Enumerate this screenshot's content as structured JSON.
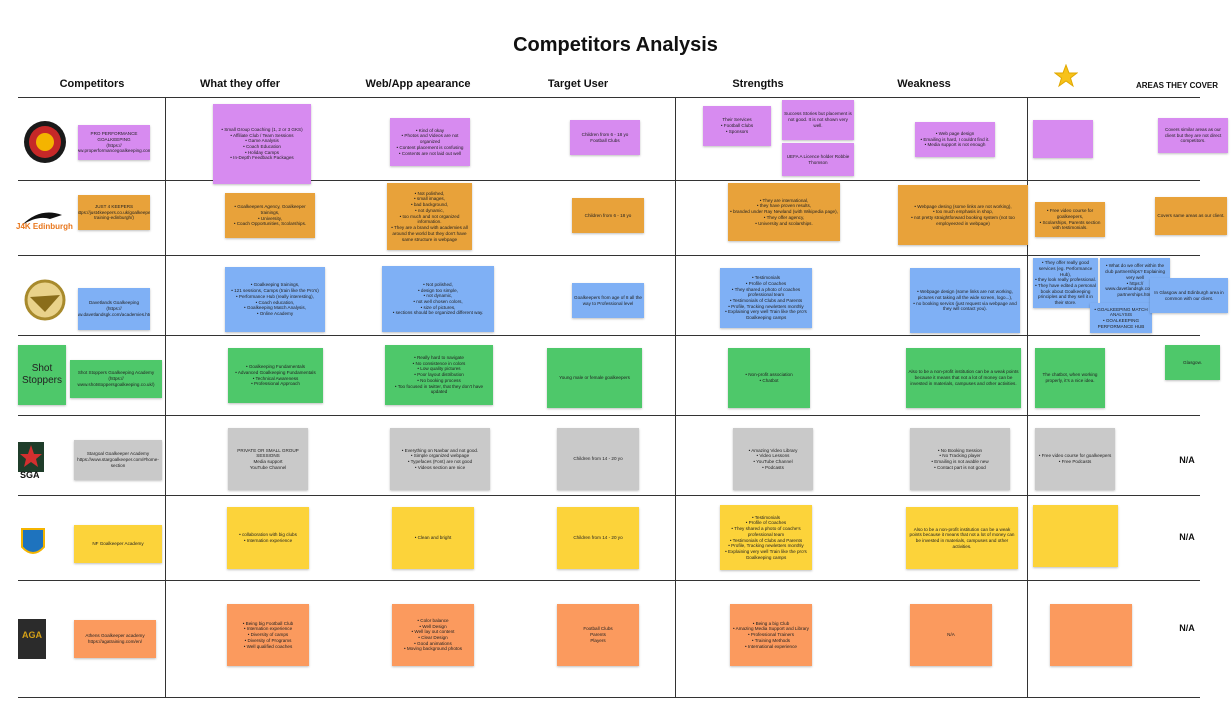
{
  "title": "Competitors Analysis",
  "headers": [
    "Competitors",
    "What they offer",
    "Web/App apearance",
    "Target User",
    "Strengths",
    "Weakness",
    "AREAS THEY COVER"
  ],
  "rows": [
    {
      "name": "PRO PERFORMANCE GOALKEEPING\n(https://\nwww.properformancegoalkeeping.com/)",
      "offer": [
        "• Small Group Coaching (1, 2 or 3 GKS)\n• Affiliate Club / Team Sessions\n• Game Analysis\n• Coach Education\n• Holiday Camps\n• In-Depth Feedback Packages"
      ],
      "web": [
        "• Kind of okay\n• Photos and Videos are not organized\n• Content placement is confusing\n• Contents are not laid out well"
      ],
      "target": [
        "Children from 6 - 18 yo\nFootball Clubs"
      ],
      "strengths": [
        "Their Services\n• Football Clubs\n• Sponsors",
        "Success Stories but placement is not good. It is not shown very well.",
        "UEFA A Licence holder Robbie Thomson"
      ],
      "weakness": [
        "• Web page design\n• Emailing is hard, I couldnt find it.\n• Media support is not enough"
      ],
      "star": [],
      "areas": [
        "Covers similar areas as our client but they are not direct competitors."
      ]
    },
    {
      "logo": "J4K Edinburgh",
      "name": "JUST 4 KEEPERS\n(https://just4keepers.co.uk/goalkeeper-training-edinburgh/)",
      "offer": [
        "• Goalkeepers Agency, Goalkeeper trainings,\n• University,\n• Coach Opportunities, Scolarships."
      ],
      "web": [
        "• Not polished,\n• small images,\n• bad background,\n• not dynamic,\n• too much and not organized information.\n• They are a brand with academies all around the world but they don't have same structure in webpage"
      ],
      "target": [
        "Children from 6 - 18 yo"
      ],
      "strengths": [
        "• They are international,\n• they have proven results,\n• branded under Ray Newland (with Wikipedia page),\n• They offer agency,\n• University and scolarships."
      ],
      "weakness": [
        "• Webpage desing (some links are not working),\n• too much emphasis in shop,\n• not pretty straightforward booking system (not too employeezed in webpage)"
      ],
      "star": [
        "• Free video course for goalkeepers,\n• Scolarships, Parents section with testimonials."
      ],
      "areas": [
        "Covers same areas as our client."
      ]
    },
    {
      "name": "Davetlands Goalkeeping\n(https://\nwww.davetlandsgk.com/academies.html)",
      "offer": [
        "• Goalkeeping trainings,\n• 121 sessions, Camps (train like the Pro's)\n• Performance Hub (really interesting),\n• Coach education,\n• Goalkeeping Match Analysis,\n• Online Academy"
      ],
      "web": [
        "• Not polished,\n• design too simple,\n• not dynamic,\n• not well chosen colors,\n• size of pictures,\n• sections should be organized different way."
      ],
      "target": [
        "Goalkeepers from age of 8 all the way to Professional level"
      ],
      "strengths": [
        "• Testimonials\n• Profile of Coaches\n• They shared a photo of coaches professional team\n• Testimonials of Clubs and Parents\n• Profile, Tracking newletters monthly\n• Explaining very well Train like the pro's Goalkeeping camps"
      ],
      "weakness": [
        "• Webpage design (some links are not working, pictures not taking all the wide screen, logo...),\n• no booking servics (just request via webpage and they will contact you)."
      ],
      "star": [
        "• They offer really good services (eg. Performance Hub),\n• they look really professional.\n• They have edited a personal book about Goalkeeping principles and they sell it in their store.",
        "• What do we offer within the club partnerships? Explaining very well\n• https://\nwww.davetlandsgk.com/club-partnerships.html",
        "• GOALKEEPING MATCH ANALYSIS\n• GOALKEEPING PERFORMANCE HUB"
      ],
      "areas": [
        "In Glasgow and Edinburgh area in common with our client."
      ]
    },
    {
      "logo": "Shot Stoppers",
      "name": "Shot Stoppers Goalkeeping Academy\n(https://\nwww.shotstoppersgoalkeeping.co.uk/)",
      "offer": [
        "• Goalkeeping Fundamentals\n• Advanced Goalkeeping Fundamentals\n• Technical Awareness\n• Professional Approach"
      ],
      "web": [
        "• Really hard to navigate\n• No consistence in colors\n• Low quality pictures\n• Poor layout distribution\n• No booking process\n• Too focused in twitter, that they don't have updated"
      ],
      "target": [
        "Young male or female goalkeepers"
      ],
      "strengths": [
        "• Non-profit association\n• Chatbot"
      ],
      "weakness": [
        "Also to be a non-profit institution can be a weak points because it means that not a lot of money can be invested in materials, campuses and other activities."
      ],
      "star": [
        "The chatbot, when working properly, it's a nice idea."
      ],
      "areas": [
        "Glasgow."
      ]
    },
    {
      "logo": "SGA",
      "name": "Stargoal Goalkeeper Academy\nhttps://www.stargoalkeeper.com/#home-section",
      "offer": [
        "PRIVATE OR SMALL GROUP SESSIONS\nMedia support\nYouTube Channel"
      ],
      "web": [
        "• Everything on Navbar and not good.\n• Simple organized webpage\n• Typefaces (Font) are not good\n• Videos section are nice"
      ],
      "target": [
        "Children from 14 - 20 yo"
      ],
      "strengths": [
        "• Amazing Video Library\n• Video Lessons\n• YouTube Channel\n• Podcasts"
      ],
      "weakness": [
        "• No Booking Session\n• No Tracking player\n• Emailing is not avable new\n• Contact part is not good"
      ],
      "star": [
        "• Free video course for goalkeepers\n• Free Podcasts"
      ],
      "areas": [
        "N/A"
      ]
    },
    {
      "name": "NF Goalkeeper Academy",
      "offer": [
        "• collaboration with big clubs\n• Internation experience"
      ],
      "web": [
        "• Clean and bright"
      ],
      "target": [
        "Children from 14 - 20 yo"
      ],
      "strengths": [
        "• Testimonials\n• Profile of Coaches\n• They shared a photo of coache's professional team\n• Testimonials of Clubs and Parents\n• Profile, Tracking newletters monthly\n• Explaining very well Train like the pro's Goalkeeping camps"
      ],
      "weakness": [
        "Also to be a non-profit institution can be a weak points because it means that not a lot of money can be invested in materials, campuses and other activities."
      ],
      "star": [],
      "areas": [
        "N/A"
      ]
    },
    {
      "logo": "AGA",
      "name": "Athens Goalkeeper academy\nhttps://agatraining.com/en/",
      "offer": [
        "• Being big Football Club\n• Internation experience\n• Diversity of camps\n• Diversity of Programs\n• Well qualified coaches"
      ],
      "web": [
        "• Color balance\n• Well Design\n• Well lay out content\n• Clear Design\n• Good animations\n• Moving background photos"
      ],
      "target": [
        "Football Clubs\nParents\nPlayers"
      ],
      "strengths": [
        "• Being a big Club\n• Amazing Media Support and Library\n• Professional Trainers\n• Training Methods\n• International experience"
      ],
      "weakness": [
        "N/A"
      ],
      "star": [],
      "areas": [
        "N/A"
      ]
    }
  ]
}
